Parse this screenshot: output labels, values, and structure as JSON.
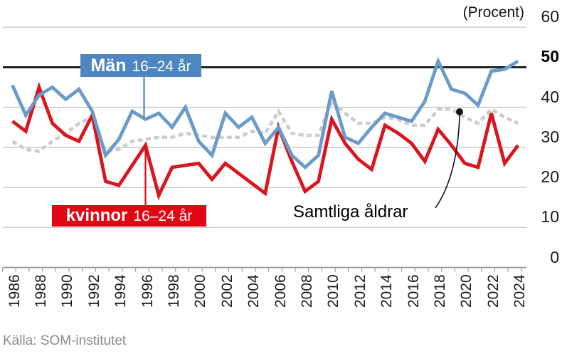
{
  "labels": {
    "men": {
      "title": "Män",
      "suffix": "16–24 år"
    },
    "women": {
      "title": "kvinnor",
      "suffix": "16–24 år"
    },
    "all_ages": "Samtliga åldrar"
  },
  "source": "Källa: SOM-institutet",
  "colors": {
    "men_line": "#6b9bc9",
    "men_box": "#4d86c1",
    "women_line": "#d9151f",
    "women_box": "#e20613",
    "all_ages_line": "#cdcdcd",
    "grid": "#c6c6c6",
    "axis": "#9b9b9b",
    "highlight_line": "#141414"
  },
  "chart_data": {
    "type": "line",
    "unit": "(Procent)",
    "ylim": [
      0,
      60
    ],
    "yticks": [
      0,
      10,
      20,
      30,
      40,
      50,
      60
    ],
    "highlighted_ytick": 50,
    "grid": true,
    "legend_position": "inline-labels",
    "x": [
      1986,
      1987,
      1988,
      1989,
      1990,
      1991,
      1992,
      1993,
      1994,
      1995,
      1996,
      1997,
      1998,
      1999,
      2000,
      2001,
      2002,
      2003,
      2004,
      2005,
      2006,
      2007,
      2008,
      2009,
      2010,
      2011,
      2012,
      2013,
      2014,
      2015,
      2016,
      2017,
      2018,
      2019,
      2020,
      2021,
      2022,
      2023,
      2024
    ],
    "xtick_labels": [
      1986,
      1988,
      1990,
      1992,
      1994,
      1996,
      1998,
      2000,
      2002,
      2004,
      2006,
      2008,
      2010,
      2012,
      2014,
      2016,
      2018,
      2020,
      2022,
      2024
    ],
    "series": [
      {
        "name": "Samtliga åldrar",
        "style": "dotted",
        "values": [
          31.5,
          29.5,
          29,
          31.5,
          33.5,
          36,
          37.5,
          29,
          29.5,
          31.5,
          32,
          32.5,
          32.5,
          33.5,
          33,
          32.5,
          32.5,
          32.5,
          34,
          33.5,
          39,
          33.5,
          33,
          33,
          41.5,
          38.5,
          36,
          36,
          37.5,
          37,
          35.5,
          35.5,
          39.5,
          39.5,
          37.5,
          36,
          39.5,
          37.5,
          36
        ]
      },
      {
        "name": "kvinnor 16–24 år",
        "style": "solid",
        "values": [
          36.5,
          34,
          45,
          36,
          33,
          31.5,
          38,
          21.5,
          20.5,
          25.5,
          30.5,
          18,
          25,
          25.5,
          26,
          22,
          26,
          23.5,
          21,
          18.5,
          35,
          26.5,
          19,
          21.5,
          37,
          31,
          27,
          24.5,
          35.5,
          33.5,
          31,
          26.5,
          34.5,
          30.5,
          26,
          25,
          38.5,
          26,
          30.5
        ]
      },
      {
        "name": "Män 16–24 år",
        "style": "solid",
        "values": [
          45.5,
          38,
          43,
          45,
          42,
          44.5,
          39,
          28,
          32,
          39,
          37,
          38.5,
          35,
          40,
          31.5,
          28,
          38.5,
          35,
          37.5,
          31,
          35,
          28,
          25,
          28,
          44,
          32.5,
          31,
          35,
          38.5,
          37.5,
          36.5,
          41.5,
          51.5,
          44.5,
          43.5,
          40.5,
          49,
          49.5,
          51.5
        ]
      }
    ],
    "annotation": {
      "dot_x": 646,
      "dot_y": 157
    }
  }
}
